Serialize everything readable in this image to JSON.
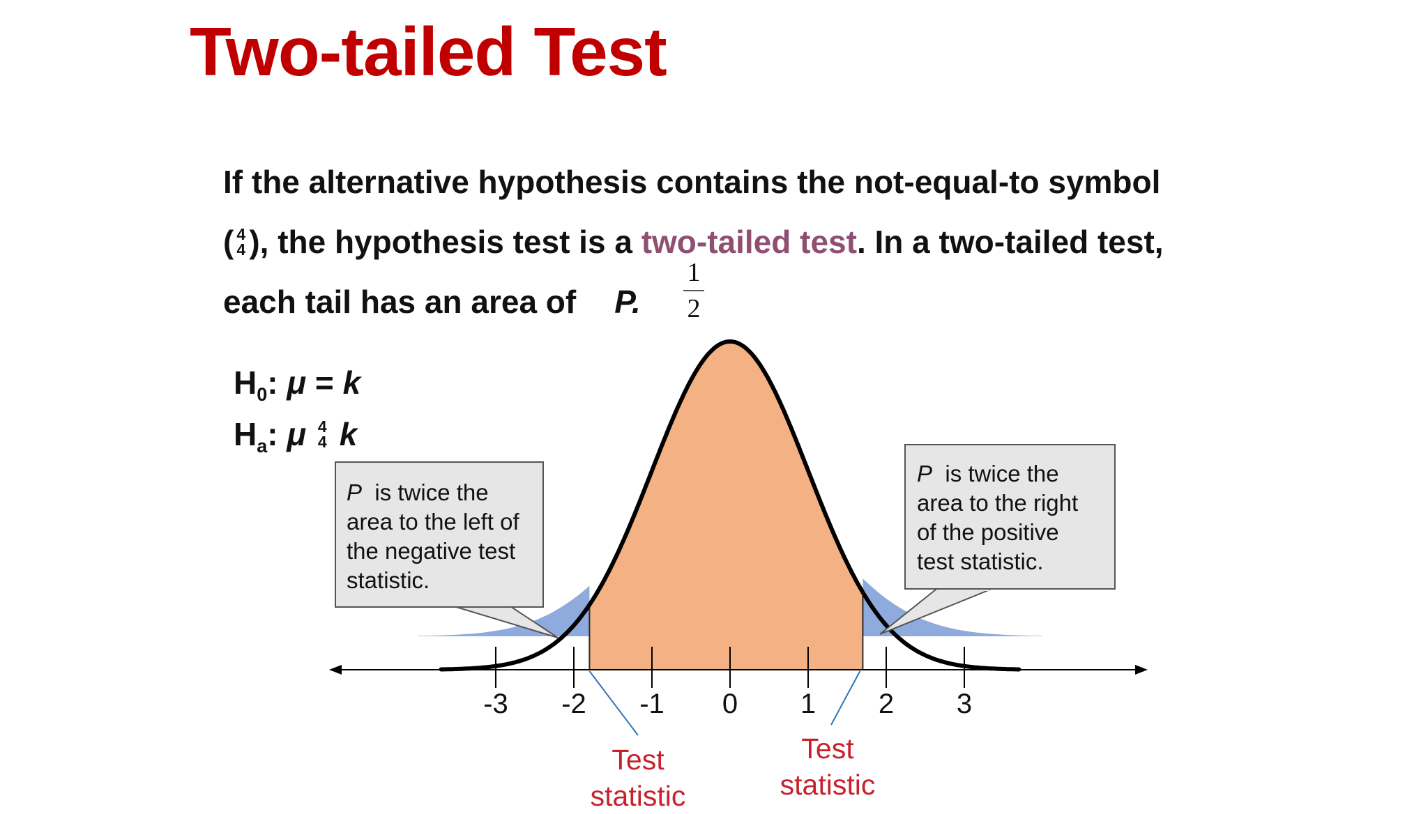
{
  "title": "Two-tailed Test",
  "paragraph": {
    "line1": "If the alternative hypothesis contains the not-equal-to symbol",
    "line2_open": "(",
    "neq_glyph_top": "4",
    "neq_glyph_bottom": "4",
    "line2_a": "), the hypothesis test is a ",
    "line2_highlight": "two-tailed test",
    "line2_b": ".  In a two-tailed test,",
    "line3_text": "each tail has an area of",
    "line3_p": "P.",
    "fraction_num": "1",
    "fraction_den": "2"
  },
  "hypotheses": {
    "h0_H": "H",
    "h0_sub": "0",
    "h0_colon": ":",
    "h0_mu": "μ",
    "h0_eq": "=",
    "h0_k": "k",
    "ha_H": "H",
    "ha_sub": "a",
    "ha_colon": ":",
    "ha_mu": "μ",
    "ha_glyph_top": "4",
    "ha_glyph_bottom": "4",
    "ha_k": "k"
  },
  "callout_left": {
    "p": "P",
    "lines": [
      "is twice the",
      "area to the left of",
      "the negative test",
      "statistic."
    ]
  },
  "callout_right": {
    "p": "P",
    "lines": [
      "is twice the",
      "area to the right",
      "of the positive",
      "test statistic."
    ]
  },
  "axis": {
    "ticks": [
      "-3",
      "-2",
      "-1",
      "0",
      "1",
      "2",
      "3"
    ],
    "tick_values": [
      -3,
      -2,
      -1,
      0,
      1,
      2,
      3
    ],
    "range": [
      -3.7,
      3.7
    ],
    "test_statistic_left": -1.8,
    "test_statistic_right": 1.7
  },
  "test_statistic_labels": {
    "left": [
      "Test",
      "statistic"
    ],
    "right": [
      "Test",
      "statistic"
    ]
  },
  "colors": {
    "title": "#c00000",
    "highlight": "#8e4f73",
    "center_fill": "#f4b183",
    "tail_fill": "#8faadc",
    "callout_fill": "#e6e6e6",
    "test_stat_label": "#c8202c",
    "pointer_line": "#2e75b6"
  }
}
